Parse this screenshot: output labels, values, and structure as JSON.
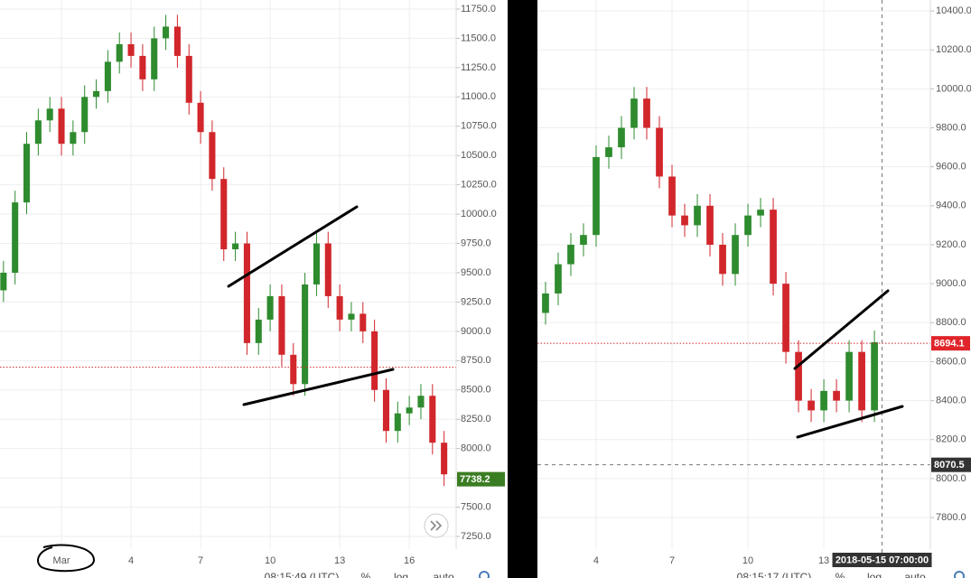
{
  "chart_data": [
    {
      "type": "candlestick",
      "x": [
        -1.5,
        -1,
        -0.5,
        0,
        0.5,
        1,
        1.5,
        2,
        2.5,
        3,
        3.5,
        4,
        4.5,
        5,
        5.5,
        6,
        6.5,
        7,
        7.5,
        8,
        8.5,
        9,
        9.5,
        10,
        10.5,
        11,
        11.5,
        12,
        12.5,
        13,
        13.5,
        14,
        14.5,
        15,
        15.5,
        16,
        16.5,
        17,
        17.5
      ],
      "open": [
        9350,
        9500,
        10100,
        10600,
        10800,
        10900,
        10600,
        10700,
        11000,
        11050,
        11300,
        11450,
        11350,
        11150,
        11500,
        11600,
        11350,
        10950,
        10700,
        10300,
        9700,
        9750,
        8900,
        9100,
        9300,
        8800,
        8550,
        9400,
        9750,
        9300,
        9100,
        9150,
        9000,
        8500,
        8150,
        8300,
        8350,
        8450,
        8050
      ],
      "high": [
        9600,
        10200,
        10700,
        10900,
        11000,
        11000,
        10800,
        11100,
        11150,
        11400,
        11550,
        11550,
        11450,
        11600,
        11700,
        11700,
        11450,
        11050,
        10800,
        10400,
        9850,
        9850,
        9200,
        9400,
        9400,
        8900,
        9500,
        9850,
        9850,
        9400,
        9250,
        9250,
        9100,
        8600,
        8400,
        8450,
        8550,
        8550,
        8150
      ],
      "low": [
        9250,
        9400,
        10000,
        10500,
        10700,
        10500,
        10500,
        10600,
        10900,
        10950,
        11200,
        11250,
        11050,
        11050,
        11400,
        11250,
        10850,
        10600,
        10200,
        9600,
        9600,
        8800,
        8800,
        9000,
        8700,
        8450,
        8450,
        9300,
        9200,
        9000,
        9000,
        8900,
        8400,
        8050,
        8050,
        8200,
        8250,
        7950,
        7680
      ],
      "close": [
        9500,
        10100,
        10600,
        10800,
        10900,
        10600,
        10700,
        11000,
        11050,
        11300,
        11450,
        11350,
        11150,
        11500,
        11600,
        11350,
        10950,
        10700,
        10300,
        9700,
        9750,
        8900,
        9100,
        9300,
        8800,
        8550,
        9400,
        9750,
        9300,
        9100,
        9150,
        9000,
        8500,
        8150,
        8300,
        8350,
        8450,
        8050,
        7780
      ],
      "up_color": "#2e8b2e",
      "down_color": "#d1262b",
      "xlim": [
        -1.65,
        18.02
      ],
      "ylim": [
        7142,
        11827
      ],
      "xticks": [
        {
          "value": 1,
          "label": "Mar"
        },
        4,
        7,
        10,
        13,
        16
      ],
      "yticks": [
        {
          "value": 7250,
          "label": "7250.0"
        },
        {
          "value": 7500,
          "label": "7500.0"
        },
        {
          "value": 7750,
          "label": "7750.0"
        },
        {
          "value": 8000,
          "label": "8000.0"
        },
        {
          "value": 8250,
          "label": "8250.0"
        },
        {
          "value": 8500,
          "label": "8500.0"
        },
        {
          "value": 8750,
          "label": "8750.0"
        },
        {
          "value": 9000,
          "label": "9000.0"
        },
        {
          "value": 9250,
          "label": "9250.0"
        },
        {
          "value": 9500,
          "label": "9500.0"
        },
        {
          "value": 9750,
          "label": "9750.0"
        },
        {
          "value": 10000,
          "label": "10000.0"
        },
        {
          "value": 10250,
          "label": "10250.0"
        },
        {
          "value": 10500,
          "label": "10500.0"
        },
        {
          "value": 10750,
          "label": "10750.0"
        },
        {
          "value": 11000,
          "label": "11000.0"
        },
        {
          "value": 11250,
          "label": "11250.0"
        },
        {
          "value": 11500,
          "label": "11500.0"
        },
        {
          "value": 11750,
          "label": "11750.0"
        }
      ],
      "grid": true,
      "price_lines": [
        {
          "value": 8694.1,
          "color": "#d1262b"
        }
      ],
      "price_labels": [
        {
          "value": 7738.2,
          "color": "#3b7d23"
        }
      ],
      "clock": "08:15:49 (UTC)",
      "buttons": [
        "%",
        "log",
        "auto"
      ]
    },
    {
      "type": "candlestick",
      "x": [
        2,
        2.5,
        3,
        3.5,
        4,
        4.5,
        5,
        5.5,
        6,
        6.5,
        7,
        7.5,
        8,
        8.5,
        9,
        9.5,
        10,
        10.5,
        11,
        11.5,
        12,
        12.5,
        13,
        13.5,
        14,
        14.5,
        15
      ],
      "open": [
        8850,
        8950,
        9100,
        9200,
        9250,
        9650,
        9700,
        9800,
        9950,
        9800,
        9550,
        9350,
        9300,
        9400,
        9200,
        9050,
        9250,
        9350,
        9380,
        9000,
        8650,
        8400,
        8350,
        8450,
        8400,
        8650,
        8350
      ],
      "high": [
        9010,
        9160,
        9260,
        9310,
        9710,
        9760,
        9860,
        10010,
        10010,
        9860,
        9610,
        9410,
        9460,
        9460,
        9260,
        9310,
        9410,
        9440,
        9440,
        9060,
        8710,
        8460,
        8510,
        8510,
        8710,
        8710,
        8760
      ],
      "low": [
        8790,
        8890,
        9040,
        9140,
        9190,
        9590,
        9640,
        9740,
        9740,
        9490,
        9290,
        9240,
        9240,
        9140,
        8990,
        8990,
        9190,
        9290,
        8940,
        8590,
        8340,
        8290,
        8290,
        8340,
        8340,
        8290,
        8290
      ],
      "close": [
        8950,
        9100,
        9200,
        9250,
        9650,
        9700,
        9800,
        9950,
        9800,
        9550,
        9350,
        9300,
        9400,
        9200,
        9050,
        9250,
        9350,
        9380,
        9000,
        8650,
        8400,
        8350,
        8450,
        8400,
        8650,
        8350,
        8700
      ],
      "up_color": "#2e8b2e",
      "down_color": "#d1262b",
      "xlim": [
        1.68,
        17.21
      ],
      "ylim": [
        7638,
        10456
      ],
      "xticks": [
        4,
        7,
        10,
        13
      ],
      "yticks": [
        {
          "value": 7800,
          "label": "7800.0"
        },
        {
          "value": 8000,
          "label": "8000.0"
        },
        {
          "value": 8200,
          "label": "8200.0"
        },
        {
          "value": 8400,
          "label": "8400.0"
        },
        {
          "value": 8600,
          "label": "8600.0"
        },
        {
          "value": 8800,
          "label": "8800.0"
        },
        {
          "value": 9000,
          "label": "9000.0"
        },
        {
          "value": 9200,
          "label": "9200.0"
        },
        {
          "value": 9400,
          "label": "9400.0"
        },
        {
          "value": 9600,
          "label": "9600.0"
        },
        {
          "value": 9800,
          "label": "9800.0"
        },
        {
          "value": 10000,
          "label": "10000.0"
        },
        {
          "value": 10200,
          "label": "10200.0"
        },
        {
          "value": 10400,
          "label": "10400.0"
        }
      ],
      "grid": true,
      "price_lines": [
        {
          "value": 8694.1,
          "color": "#d1262b"
        }
      ],
      "price_labels": [
        {
          "value": 8694.1,
          "color": "#e0242a"
        }
      ],
      "crosshair": {
        "x": 15.3,
        "y": 8070.5,
        "label": "2018-05-15 07:00:00"
      },
      "clock": "08:15:17 (UTC)",
      "buttons": [
        "%",
        "log",
        "auto"
      ]
    }
  ]
}
